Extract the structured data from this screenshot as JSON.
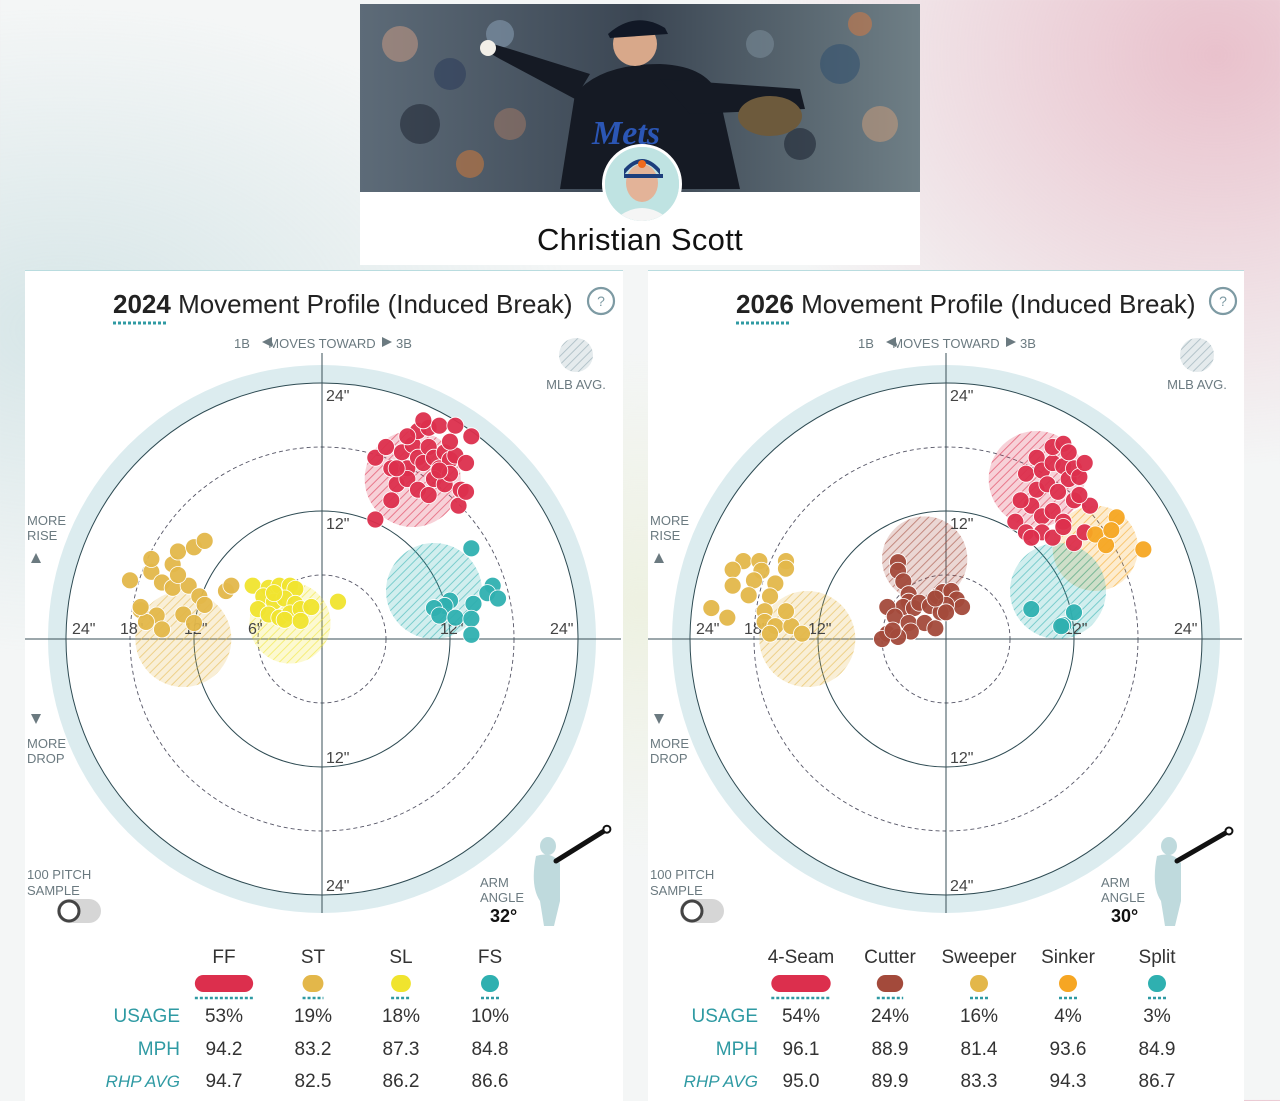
{
  "player": {
    "name": "Christian Scott",
    "jersey_text": "Mets"
  },
  "colors": {
    "FF": "#dc2f4d",
    "ST": "#e3b74a",
    "SL": "#f0e42e",
    "FS": "#2fb0b0",
    "Cutter": "#a34a3b",
    "Sinker": "#f6a623",
    "ring": "#dcecef",
    "teal": "#2f9aa3"
  },
  "panels": [
    {
      "year": "2024",
      "title": "Movement Profile (Induced Break)",
      "help": "?",
      "moves": {
        "left": "1B",
        "center": "MOVES TOWARD",
        "right": "3B"
      },
      "mlb_avg": "MLB AVG.",
      "more_rise": [
        "MORE",
        "RISE"
      ],
      "more_drop": [
        "MORE",
        "DROP"
      ],
      "sample": [
        "100 PITCH",
        "SAMPLE"
      ],
      "arm_angle_label": [
        "ARM",
        "ANGLE"
      ],
      "arm_angle": "32°",
      "arm_angle_deg": 32,
      "row_labels": {
        "usage": "USAGE",
        "mph": "MPH",
        "rhp": "RHP AVG"
      },
      "pitches": [
        {
          "name": "FF",
          "usage": "53%",
          "mph": "94.2",
          "rhp_avg": "94.7",
          "color": "#dc2f4d"
        },
        {
          "name": "ST",
          "usage": "19%",
          "mph": "83.2",
          "rhp_avg": "82.5",
          "color": "#e3b74a"
        },
        {
          "name": "SL",
          "usage": "18%",
          "mph": "87.3",
          "rhp_avg": "86.2",
          "color": "#f0e42e"
        },
        {
          "name": "FS",
          "usage": "10%",
          "mph": "84.8",
          "rhp_avg": "86.6",
          "color": "#2fb0b0"
        }
      ]
    },
    {
      "year": "2026",
      "title": "Movement Profile (Induced Break)",
      "help": "?",
      "moves": {
        "left": "1B",
        "center": "MOVES TOWARD",
        "right": "3B"
      },
      "mlb_avg": "MLB AVG.",
      "more_rise": [
        "MORE",
        "RISE"
      ],
      "more_drop": [
        "MORE",
        "DROP"
      ],
      "sample": [
        "100 PITCH",
        "SAMPLE"
      ],
      "arm_angle_label": [
        "ARM",
        "ANGLE"
      ],
      "arm_angle": "30°",
      "arm_angle_deg": 30,
      "row_labels": {
        "usage": "USAGE",
        "mph": "MPH",
        "rhp": "RHP AVG"
      },
      "pitches": [
        {
          "name": "4-Seam",
          "usage": "54%",
          "mph": "96.1",
          "rhp_avg": "95.0",
          "color": "#dc2f4d"
        },
        {
          "name": "Cutter",
          "usage": "24%",
          "mph": "88.9",
          "rhp_avg": "89.9",
          "color": "#a34a3b"
        },
        {
          "name": "Sweeper",
          "usage": "16%",
          "mph": "81.4",
          "rhp_avg": "83.3",
          "color": "#e3b74a"
        },
        {
          "name": "Sinker",
          "usage": "4%",
          "mph": "93.6",
          "rhp_avg": "94.3",
          "color": "#f6a623"
        },
        {
          "name": "Split",
          "usage": "3%",
          "mph": "84.9",
          "rhp_avg": "86.7",
          "color": "#2fb0b0"
        }
      ]
    }
  ],
  "chart_data": [
    {
      "type": "scatter",
      "title": "2024 Movement Profile (Induced Break)",
      "xlabel": "1B ◀ MOVES TOWARD ▶ 3B",
      "ylabel": "MORE RISE / MORE DROP",
      "xlim": [
        -24,
        24
      ],
      "ylim": [
        -24,
        24
      ],
      "rings": [
        6,
        12,
        18,
        24
      ],
      "tick_labels": {
        "x": [
          "24\"",
          "18\"",
          "12\"",
          "6\"",
          "12\"",
          "24\""
        ],
        "y": [
          "24\"",
          "12\"",
          "12\"",
          "24\""
        ]
      },
      "mlb_avg": [
        {
          "pitch": "FF",
          "x": 8.5,
          "y": 15,
          "r": 4.5
        },
        {
          "pitch": "ST",
          "x": -13,
          "y": 0,
          "r": 4.5
        },
        {
          "pitch": "SL",
          "x": -3,
          "y": 1.5,
          "r": 3.8
        },
        {
          "pitch": "FS",
          "x": 10.5,
          "y": 4.5,
          "r": 4.5
        }
      ],
      "series": [
        {
          "name": "FF",
          "points": [
            [
              5,
              17
            ],
            [
              6.5,
              16
            ],
            [
              6,
              18
            ],
            [
              7.5,
              17.5
            ],
            [
              8,
              16
            ],
            [
              8.5,
              18.2
            ],
            [
              9,
              17
            ],
            [
              9.5,
              16.5
            ],
            [
              10,
              18
            ],
            [
              10.5,
              17
            ],
            [
              11,
              16
            ],
            [
              11.5,
              17.5
            ],
            [
              12,
              16.8
            ],
            [
              12.5,
              17.2
            ],
            [
              9,
              19.5
            ],
            [
              10,
              19.8
            ],
            [
              11,
              20
            ],
            [
              12.5,
              20
            ],
            [
              14,
              19
            ],
            [
              7,
              14.5
            ],
            [
              8,
              15
            ],
            [
              9,
              14
            ],
            [
              10,
              13.5
            ],
            [
              10.5,
              15
            ],
            [
              11.5,
              14.5
            ],
            [
              12,
              15.5
            ],
            [
              13,
              14
            ],
            [
              13.5,
              16.5
            ],
            [
              6.5,
              13
            ],
            [
              5,
              11.2
            ],
            [
              9.5,
              20.5
            ],
            [
              12,
              18.5
            ],
            [
              8,
              19
            ],
            [
              7,
              16
            ],
            [
              12.8,
              12.5
            ],
            [
              13.5,
              13.8
            ],
            [
              11,
              15.8
            ]
          ]
        },
        {
          "name": "ST",
          "points": [
            [
              -18,
              5.5
            ],
            [
              -16,
              6.3
            ],
            [
              -16,
              7.5
            ],
            [
              -14,
              7
            ],
            [
              -13.5,
              8.2
            ],
            [
              -12,
              8.6
            ],
            [
              -11,
              9.2
            ],
            [
              -15,
              5.3
            ],
            [
              -14,
              4.8
            ],
            [
              -12.5,
              5
            ],
            [
              -11.5,
              4
            ],
            [
              -17,
              2.7
            ],
            [
              -15.5,
              2.2
            ],
            [
              -13,
              2.3
            ],
            [
              -11,
              3.2
            ],
            [
              -16.5,
              1.6
            ],
            [
              -15,
              0.9
            ],
            [
              -9,
              4.5
            ],
            [
              -8.5,
              5
            ],
            [
              -17,
              3
            ],
            [
              -12,
              1.5
            ],
            [
              -13.5,
              6
            ]
          ]
        },
        {
          "name": "SL",
          "points": [
            [
              -6.5,
              5
            ],
            [
              -5,
              4.8
            ],
            [
              -4,
              5
            ],
            [
              -3,
              5
            ],
            [
              -2.5,
              4.7
            ],
            [
              -5.5,
              4
            ],
            [
              -4.5,
              3.5
            ],
            [
              -3.5,
              3.8
            ],
            [
              -2.5,
              3.3
            ],
            [
              -6,
              2.8
            ],
            [
              -5,
              2.3
            ],
            [
              -4,
              2
            ],
            [
              -3,
              2.4
            ],
            [
              -2,
              2.8
            ],
            [
              -1,
              3
            ],
            [
              -3.5,
              1.8
            ],
            [
              -2,
              1.7
            ],
            [
              1.5,
              3.5
            ],
            [
              -4.5,
              4.3
            ]
          ]
        },
        {
          "name": "FS",
          "points": [
            [
              14,
              8.5
            ],
            [
              16,
              5
            ],
            [
              15.5,
              4.3
            ],
            [
              14.2,
              3.3
            ],
            [
              12,
              3.6
            ],
            [
              11.5,
              3.1
            ],
            [
              10.5,
              2.9
            ],
            [
              11,
              2.2
            ],
            [
              12.5,
              2
            ],
            [
              14,
              1.9
            ],
            [
              14,
              0.4
            ],
            [
              16.5,
              3.8
            ]
          ]
        }
      ]
    },
    {
      "type": "scatter",
      "title": "2026 Movement Profile (Induced Break)",
      "xlabel": "1B ◀ MOVES TOWARD ▶ 3B",
      "ylabel": "MORE RISE / MORE DROP",
      "xlim": [
        -24,
        24
      ],
      "ylim": [
        -24,
        24
      ],
      "rings": [
        6,
        12,
        18,
        24
      ],
      "tick_labels": {
        "x": [
          "24\"",
          "18\"",
          "12\"",
          "12\"",
          "24\""
        ],
        "y": [
          "24\"",
          "12\"",
          "12\"",
          "24\""
        ]
      },
      "mlb_avg": [
        {
          "pitch": "4-Seam",
          "x": 8.5,
          "y": 15,
          "r": 4.5
        },
        {
          "pitch": "Cutter",
          "x": -2,
          "y": 7.5,
          "r": 4
        },
        {
          "pitch": "Sweeper",
          "x": -13,
          "y": 0,
          "r": 4.5
        },
        {
          "pitch": "Sinker",
          "x": 14,
          "y": 8.5,
          "r": 4
        },
        {
          "pitch": "Split",
          "x": 10.5,
          "y": 4.5,
          "r": 4.5
        }
      ],
      "series": [
        {
          "name": "4-Seam",
          "points": [
            [
              7.5,
              15.5
            ],
            [
              8.5,
              17
            ],
            [
              9,
              15.8
            ],
            [
              10,
              16.5
            ],
            [
              11,
              16.2
            ],
            [
              11.5,
              15
            ],
            [
              12,
              16
            ],
            [
              12.5,
              15.2
            ],
            [
              13,
              16.5
            ],
            [
              10,
              18
            ],
            [
              11,
              18.3
            ],
            [
              8.5,
              14
            ],
            [
              9.5,
              14.5
            ],
            [
              10.5,
              13.8
            ],
            [
              12,
              13
            ],
            [
              13.5,
              12.5
            ],
            [
              8,
              12.5
            ],
            [
              9,
              11.5
            ],
            [
              10,
              12
            ],
            [
              11,
              11
            ],
            [
              6.5,
              11
            ],
            [
              7.5,
              10
            ],
            [
              9,
              10
            ],
            [
              10,
              9.5
            ],
            [
              11,
              10.5
            ],
            [
              12,
              9
            ],
            [
              8,
              9.5
            ],
            [
              13,
              10
            ],
            [
              12.5,
              13.5
            ],
            [
              7,
              13
            ],
            [
              11.5,
              17.5
            ]
          ]
        },
        {
          "name": "Cutter",
          "points": [
            [
              -4.5,
              7.2
            ],
            [
              -4.5,
              6.4
            ],
            [
              -4,
              5.4
            ],
            [
              -3.5,
              4.2
            ],
            [
              -3.5,
              3.5
            ],
            [
              -4,
              3
            ],
            [
              -3,
              2.9
            ],
            [
              -2.5,
              3.4
            ],
            [
              -1.5,
              3.1
            ],
            [
              -0.8,
              4
            ],
            [
              -0.3,
              4.4
            ],
            [
              0.5,
              4.5
            ],
            [
              1,
              3.7
            ],
            [
              1.5,
              3
            ],
            [
              0,
              3.2
            ],
            [
              -5.5,
              3
            ],
            [
              -4.8,
              2.1
            ],
            [
              -3.5,
              1.5
            ],
            [
              -2,
              1.5
            ],
            [
              -3.3,
              0.7
            ],
            [
              -5.5,
              0.5
            ],
            [
              -4.5,
              0.2
            ],
            [
              -1,
              1
            ],
            [
              -6,
              0
            ],
            [
              -5,
              0.8
            ],
            [
              -0.5,
              2.5
            ],
            [
              0,
              2.5
            ],
            [
              -1,
              3.8
            ]
          ]
        },
        {
          "name": "Sweeper",
          "points": [
            [
              -19,
              7.3
            ],
            [
              -17.5,
              7.3
            ],
            [
              -15,
              7.3
            ],
            [
              -20,
              6.5
            ],
            [
              -17.3,
              6.4
            ],
            [
              -15,
              6.6
            ],
            [
              -18,
              5.5
            ],
            [
              -16,
              5.2
            ],
            [
              -16.5,
              4
            ],
            [
              -18.5,
              4.1
            ],
            [
              -17,
              2.6
            ],
            [
              -17,
              1.6
            ],
            [
              -16,
              1.2
            ],
            [
              -14.5,
              1.2
            ],
            [
              -16.5,
              0.5
            ],
            [
              -13.5,
              0.5
            ],
            [
              -22,
              2.9
            ],
            [
              -20.5,
              2
            ],
            [
              -15,
              2.6
            ],
            [
              -20,
              5
            ]
          ]
        },
        {
          "name": "Sinker",
          "points": [
            [
              16,
              11.4
            ],
            [
              14,
              9.8
            ],
            [
              15,
              8.8
            ],
            [
              18.5,
              8.4
            ],
            [
              15.5,
              10.2
            ]
          ]
        },
        {
          "name": "Split",
          "points": [
            [
              8,
              2.8
            ],
            [
              11,
              1.3
            ],
            [
              12,
              2.5
            ],
            [
              10.8,
              1.2
            ]
          ]
        }
      ]
    }
  ]
}
